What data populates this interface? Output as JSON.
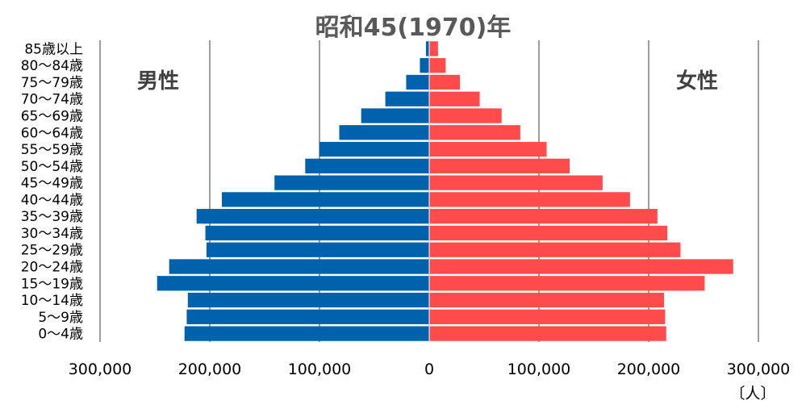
{
  "chart_data": {
    "type": "bar",
    "orientation": "horizontal-butterfly",
    "title": "昭和45(1970)年",
    "unit_label": "〔人〕",
    "left_label": "男性",
    "right_label": "女性",
    "categories": [
      "85歳以上",
      "80〜84歳",
      "75〜79歳",
      "70〜74歳",
      "65〜69歳",
      "60〜64歳",
      "55〜59歳",
      "50〜54歳",
      "45〜49歳",
      "40〜44歳",
      "35〜39歳",
      "30〜34歳",
      "25〜29歳",
      "20〜24歳",
      "15〜19歳",
      "10〜14歳",
      "5〜9歳",
      "0〜4歳"
    ],
    "series": [
      {
        "name": "男性",
        "color": "#0062AC",
        "values": [
          3000,
          8500,
          21000,
          40000,
          62000,
          82000,
          100000,
          113000,
          141000,
          189000,
          212000,
          204000,
          203000,
          237000,
          248000,
          220000,
          221000,
          223000
        ]
      },
      {
        "name": "女性",
        "color": "#FF4B4B",
        "values": [
          8000,
          15000,
          28000,
          46000,
          66000,
          83000,
          107000,
          128000,
          158000,
          183000,
          208000,
          217000,
          229000,
          277000,
          251000,
          214000,
          215000,
          216000
        ]
      }
    ],
    "xlim": [
      -300000,
      300000
    ],
    "x_ticks": [
      -300000,
      -200000,
      -100000,
      0,
      100000,
      200000,
      300000
    ],
    "x_tick_labels": [
      "300,000",
      "200,000",
      "100,000",
      "0",
      "100,000",
      "200,000",
      "300,000"
    ],
    "grid": true
  }
}
